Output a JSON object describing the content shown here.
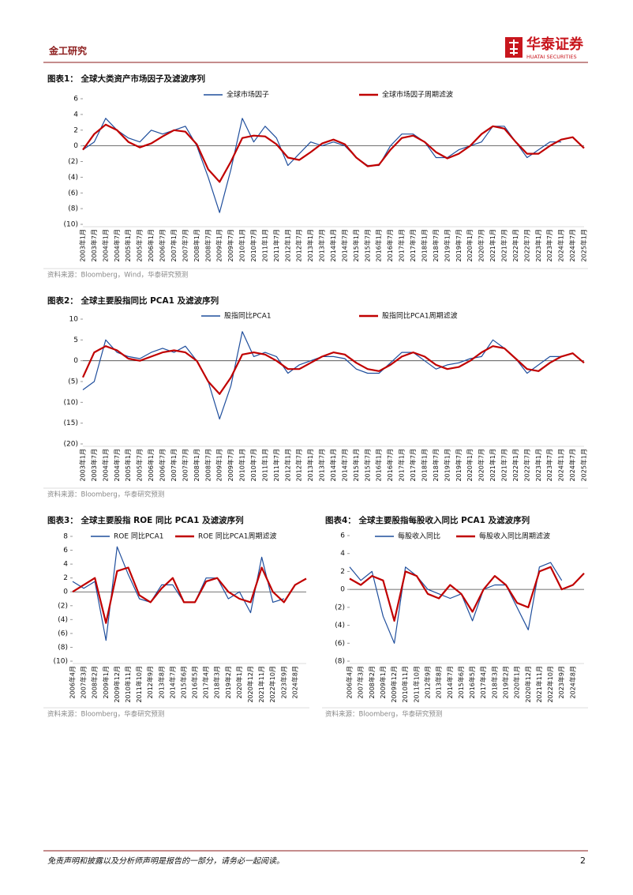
{
  "header": {
    "section": "金工研究",
    "logo_cn": "华泰证券",
    "logo_en": "HUATAI SECURITIES"
  },
  "footer": {
    "disclaimer": "免责声明和披露以及分析师声明是报告的一部分，请务必一起阅读。",
    "page": "2"
  },
  "chart_data": [
    {
      "type": "line",
      "title": "图表1： 全球大类资产市场因子及滤波序列",
      "source": "资料来源：Bloomberg，Wind，华泰研究预测",
      "categories": [
        "2003年1月",
        "2003年7月",
        "2004年1月",
        "2004年7月",
        "2005年1月",
        "2005年7月",
        "2006年1月",
        "2006年7月",
        "2007年1月",
        "2007年7月",
        "2008年1月",
        "2008年7月",
        "2009年1月",
        "2009年7月",
        "2010年1月",
        "2010年7月",
        "2011年1月",
        "2011年7月",
        "2012年1月",
        "2012年7月",
        "2013年1月",
        "2013年7月",
        "2014年1月",
        "2014年7月",
        "2015年1月",
        "2015年7月",
        "2016年1月",
        "2016年7月",
        "2017年1月",
        "2017年7月",
        "2018年1月",
        "2018年7月",
        "2019年1月",
        "2019年7月",
        "2020年1月",
        "2020年7月",
        "2021年1月",
        "2021年7月",
        "2022年1月",
        "2022年7月",
        "2023年1月",
        "2023年7月",
        "2024年1月",
        "2024年7月",
        "2025年1月"
      ],
      "series": [
        {
          "name": "全球市场因子",
          "color": "#1f4e9c",
          "values": [
            -0.5,
            0.5,
            3.5,
            2,
            1,
            0.5,
            2,
            1.5,
            2,
            2.5,
            0,
            -4,
            -8.5,
            -3,
            3.5,
            0.5,
            2.5,
            1,
            -2.5,
            -1,
            0.5,
            0,
            0.5,
            0,
            -1.5,
            -2.5,
            -2.5,
            0,
            1.5,
            1.5,
            0.5,
            -1.5,
            -1.5,
            -0.5,
            0,
            0.5,
            2.5,
            2.5,
            0.5,
            -1.5,
            -0.5,
            0.5,
            0.5,
            null,
            null
          ]
        },
        {
          "name": "全球市场因子周期滤波",
          "color": "#c00000",
          "values": [
            -0.5,
            1.5,
            2.7,
            2,
            0.5,
            -0.2,
            0.3,
            1.2,
            2,
            1.8,
            0.2,
            -3,
            -4.6,
            -2,
            1,
            1.3,
            1.2,
            0.2,
            -1.5,
            -1.8,
            -0.8,
            0.3,
            0.8,
            0.2,
            -1.5,
            -2.6,
            -2.4,
            -0.5,
            1,
            1.3,
            0.5,
            -0.8,
            -1.6,
            -1,
            0,
            1.5,
            2.5,
            2.2,
            0.5,
            -1,
            -1,
            0,
            0.8,
            1.1,
            -0.3
          ]
        }
      ],
      "ylim": [
        -10,
        6
      ],
      "yticks": [
        6,
        4,
        2,
        0,
        {
          "value": -2,
          "label": "(2)"
        },
        {
          "value": -4,
          "label": "(4)"
        },
        {
          "value": -6,
          "label": "(6)"
        },
        {
          "value": -8,
          "label": "(8)"
        },
        {
          "value": -10,
          "label": "(10)"
        }
      ],
      "grid": false,
      "legend": "top"
    },
    {
      "type": "line",
      "title": "图表2： 全球主要股指同比 PCA1 及滤波序列",
      "source": "资料来源：Bloomberg，华泰研究预测",
      "categories": [
        "2003年1月",
        "2003年7月",
        "2004年1月",
        "2004年7月",
        "2005年1月",
        "2005年7月",
        "2006年1月",
        "2006年7月",
        "2007年1月",
        "2007年7月",
        "2008年1月",
        "2008年7月",
        "2009年1月",
        "2009年7月",
        "2010年1月",
        "2010年7月",
        "2011年1月",
        "2011年7月",
        "2012年1月",
        "2012年7月",
        "2013年1月",
        "2013年7月",
        "2014年1月",
        "2014年7月",
        "2015年1月",
        "2015年7月",
        "2016年1月",
        "2016年7月",
        "2017年1月",
        "2017年7月",
        "2018年1月",
        "2018年7月",
        "2019年1月",
        "2019年7月",
        "2020年1月",
        "2020年7月",
        "2021年1月",
        "2021年7月",
        "2022年1月",
        "2022年7月",
        "2023年1月",
        "2023年7月",
        "2024年1月",
        "2024年7月",
        "2025年1月"
      ],
      "series": [
        {
          "name": "股指同比PCA1",
          "color": "#1f4e9c",
          "values": [
            -7,
            -5,
            5,
            2,
            1,
            0.5,
            2,
            3,
            2,
            3.5,
            0,
            -5,
            -14,
            -6,
            7,
            1,
            2,
            1,
            -3,
            -1,
            0,
            1,
            1,
            0.5,
            -2,
            -3,
            -3,
            -0.5,
            2,
            2,
            0,
            -2,
            -1,
            -0.5,
            0.5,
            1,
            5,
            3,
            0.5,
            -3,
            -1,
            1,
            1,
            null,
            null
          ]
        },
        {
          "name": "股指同比PCA1周期滤波",
          "color": "#c00000",
          "values": [
            -4,
            2,
            3.5,
            2.5,
            0.5,
            0,
            1,
            2,
            2.5,
            2,
            0,
            -5,
            -8,
            -4,
            1.5,
            2,
            1.5,
            0,
            -2,
            -2,
            -0.5,
            1,
            2,
            1.5,
            -0.5,
            -2,
            -2.5,
            -1,
            1,
            2,
            1,
            -1,
            -2,
            -1.5,
            0,
            2,
            3.5,
            3,
            0.5,
            -2,
            -2.5,
            -0.5,
            1,
            1.8,
            -0.5
          ]
        }
      ],
      "ylim": [
        -20,
        10
      ],
      "yticks": [
        10,
        5,
        0,
        {
          "value": -5,
          "label": "(5)"
        },
        {
          "value": -10,
          "label": "(10)"
        },
        {
          "value": -15,
          "label": "(15)"
        },
        {
          "value": -20,
          "label": "(20)"
        }
      ],
      "grid": false,
      "legend": "top"
    },
    {
      "type": "line",
      "title": "图表3： 全球主要股指 ROE 同比 PCA1 及滤波序列",
      "source": "资料来源：Bloomberg，华泰研究预测",
      "categories": [
        "2006年4月",
        "2007年3月",
        "2008年2月",
        "2009年1月",
        "2009年12月",
        "2010年11月",
        "2011年10月",
        "2012年9月",
        "2013年8月",
        "2014年7月",
        "2015年6月",
        "2016年5月",
        "2017年4月",
        "2018年3月",
        "2019年2月",
        "2020年1月",
        "2020年12月",
        "2021年11月",
        "2022年10月",
        "2023年9月",
        "2024年8月",
        null
      ],
      "series": [
        {
          "name": "ROE 同比PCA1",
          "color": "#1f4e9c",
          "values": [
            1.5,
            0.5,
            1.5,
            -7,
            6.5,
            2.5,
            -1,
            -1.5,
            1,
            1,
            -1.5,
            -1.5,
            2,
            2,
            -1,
            0,
            -3,
            5,
            -1.5,
            -1,
            null,
            null
          ]
        },
        {
          "name": "ROE 同比PCA1周期滤波",
          "color": "#c00000",
          "values": [
            0,
            1,
            2,
            -4.5,
            3,
            3.5,
            -0.5,
            -1.5,
            0.5,
            2,
            -1.5,
            -1.5,
            1.5,
            2,
            0,
            -1,
            -1.5,
            3.5,
            0,
            -1.5,
            1,
            1.9
          ]
        }
      ],
      "ylim": [
        -10,
        8
      ],
      "yticks": [
        8,
        6,
        4,
        2,
        0,
        {
          "value": -2,
          "label": "(2)"
        },
        {
          "value": -4,
          "label": "(4)"
        },
        {
          "value": -6,
          "label": "(6)"
        },
        {
          "value": -8,
          "label": "(8)"
        },
        {
          "value": -10,
          "label": "(10)"
        }
      ],
      "grid": false,
      "legend": "top"
    },
    {
      "type": "line",
      "title": "图表4： 全球主要股指每股收入同比 PCA1 及滤波序列",
      "source": "资料来源：Bloomberg，华泰研究预测",
      "categories": [
        "2006年4月",
        "2007年3月",
        "2008年2月",
        "2009年1月",
        "2009年12月",
        "2010年11月",
        "2011年10月",
        "2012年9月",
        "2013年8月",
        "2014年7月",
        "2015年6月",
        "2016年5月",
        "2017年4月",
        "2018年3月",
        "2019年2月",
        "2020年1月",
        "2020年12月",
        "2021年11月",
        "2022年10月",
        "2023年9月",
        "2024年8月",
        null
      ],
      "series": [
        {
          "name": "每股收入同比",
          "color": "#1f4e9c",
          "values": [
            2.5,
            1,
            2,
            -3,
            -6,
            2.5,
            1.5,
            0,
            -0.5,
            -1,
            -0.5,
            -3.5,
            0,
            0.5,
            0.5,
            -2,
            -4.5,
            2.5,
            3,
            1,
            null,
            null
          ]
        },
        {
          "name": "每股收入同比周期滤波",
          "color": "#c00000",
          "values": [
            1.2,
            0.5,
            1.5,
            1,
            -3.5,
            2,
            1.5,
            -0.5,
            -1,
            0.5,
            -0.5,
            -2.5,
            0,
            1.5,
            0.5,
            -1.5,
            -2,
            2,
            2.5,
            0,
            0.5,
            1.8
          ]
        }
      ],
      "ylim": [
        -8,
        6
      ],
      "yticks": [
        6,
        4,
        2,
        0,
        {
          "value": -2,
          "label": "(2)"
        },
        {
          "value": -4,
          "label": "(4)"
        },
        {
          "value": -6,
          "label": "(6)"
        },
        {
          "value": -8,
          "label": "(8)"
        }
      ],
      "grid": false,
      "legend": "top"
    }
  ]
}
